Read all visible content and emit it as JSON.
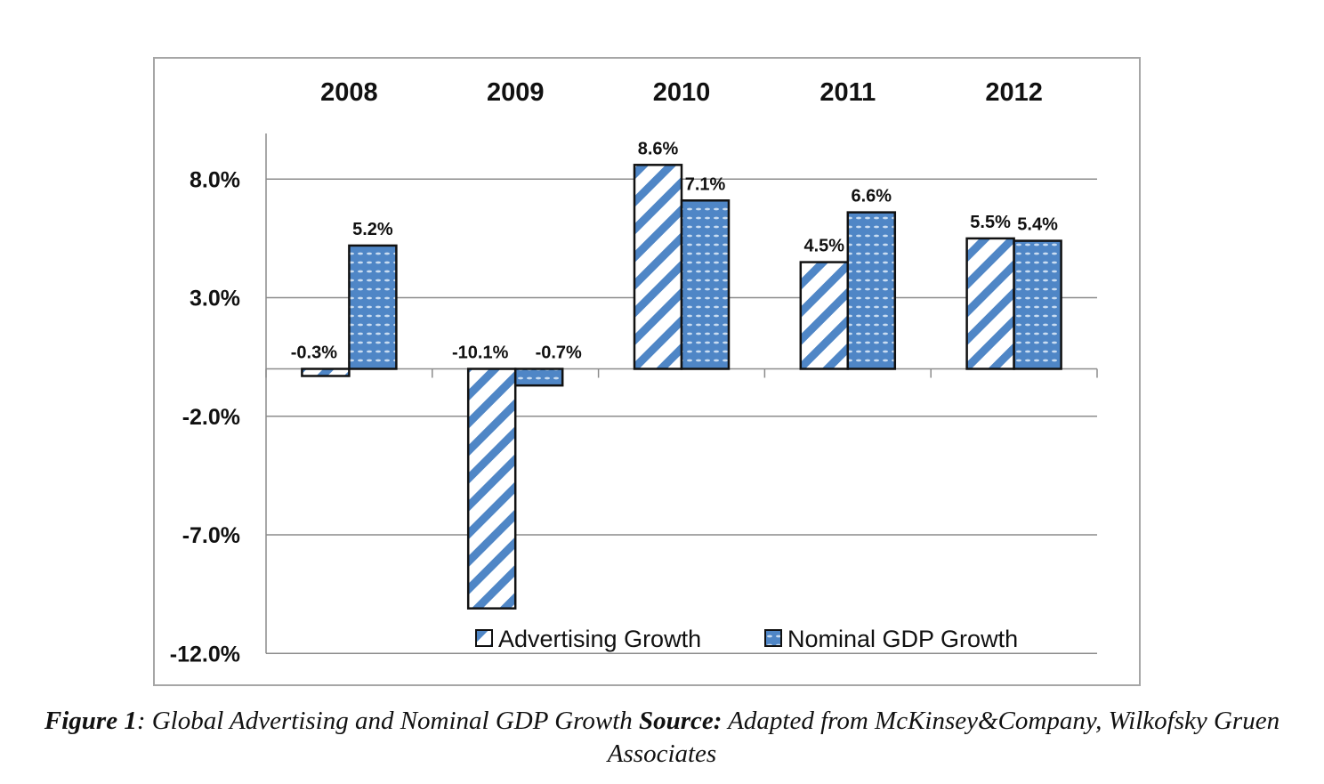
{
  "chart_data": {
    "type": "bar",
    "categories": [
      "2008",
      "2009",
      "2010",
      "2011",
      "2012"
    ],
    "series": [
      {
        "name": "Advertising Growth",
        "values": [
          -0.3,
          -10.1,
          8.6,
          4.5,
          5.5
        ],
        "labels": [
          "-0.3%",
          "-10.1%",
          "8.6%",
          "4.5%",
          "5.5%"
        ],
        "color": "#4f86c6",
        "pattern": "diagonal-stripes"
      },
      {
        "name": "Nominal GDP Growth",
        "values": [
          5.2,
          -0.7,
          7.1,
          6.6,
          5.4
        ],
        "labels": [
          "5.2%",
          "-0.7%",
          "7.1%",
          "6.6%",
          "5.4%"
        ],
        "color": "#4f86c6",
        "pattern": "dotted"
      }
    ],
    "yticks": [
      8.0,
      3.0,
      -2.0,
      -7.0,
      -12.0
    ],
    "ytick_labels": [
      "8.0%",
      "3.0%",
      "-2.0%",
      "-7.0%",
      "-12.0%"
    ],
    "ylim": [
      -12.0,
      10.0
    ],
    "grid": true,
    "legend": "bottom-center",
    "title": "",
    "xlabel": "",
    "ylabel": ""
  },
  "caption": {
    "figure_label": "Figure 1",
    "title_text": ": Global Advertising and Nominal GDP Growth ",
    "source_label": "Source:",
    "source_text": " Adapted from McKinsey&Company, Wilkofsky Gruen Associates"
  }
}
